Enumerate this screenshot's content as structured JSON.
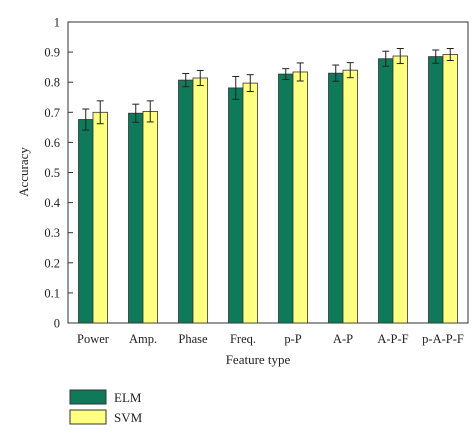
{
  "chart_data": {
    "type": "bar",
    "title": "",
    "xlabel": "Feature type",
    "ylabel": "Accuracy",
    "ylim": [
      0,
      1
    ],
    "yticks": [
      "0",
      "0.1",
      "0.2",
      "0.3",
      "0.4",
      "0.5",
      "0.6",
      "0.7",
      "0.8",
      "0.9",
      "1"
    ],
    "grid": false,
    "legend_position": "bottom-left",
    "categories": [
      "Power",
      "Amp.",
      "Phase",
      "Freq.",
      "p-P",
      "A-P",
      "A-P-F",
      "p-A-P-F"
    ],
    "series": [
      {
        "name": "ELM",
        "color": "#0f7a5a",
        "values": [
          0.676,
          0.697,
          0.807,
          0.781,
          0.827,
          0.83,
          0.878,
          0.885
        ],
        "errors": [
          0.035,
          0.03,
          0.022,
          0.038,
          0.018,
          0.027,
          0.025,
          0.022
        ]
      },
      {
        "name": "SVM",
        "color": "#ffff80",
        "values": [
          0.7,
          0.703,
          0.814,
          0.797,
          0.834,
          0.84,
          0.887,
          0.892
        ],
        "errors": [
          0.038,
          0.035,
          0.025,
          0.028,
          0.03,
          0.025,
          0.025,
          0.02
        ]
      }
    ]
  }
}
